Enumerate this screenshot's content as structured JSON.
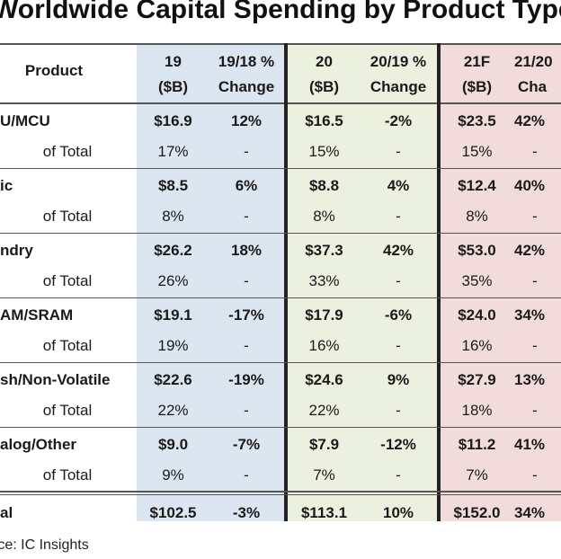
{
  "title": "Worldwide Capital Spending by Product Type",
  "source": "rce: IC Insights",
  "colors": {
    "blue_bg": "#dce6f1",
    "green_bg": "#ebf1de",
    "red_bg": "#f2dcdb"
  },
  "headers": {
    "product": "Product",
    "c19a": "19",
    "c19b": "($B)",
    "c1918a": "19/18 %",
    "c1918b": "Change",
    "c20a": "20",
    "c20b": "($B)",
    "c2019a": "20/19 %",
    "c2019b": "Change",
    "c21a": "21F",
    "c21b": "($B)",
    "c2120a": "21/20",
    "c2120b": "Cha"
  },
  "rows": [
    {
      "label": "U/MCU",
      "v19": "$16.9",
      "c19": "12%",
      "v20": "$16.5",
      "c20": "-2%",
      "v21": "$23.5",
      "c21": "42%",
      "sub_label": "of Total",
      "s19": "17%",
      "s20": "15%",
      "s21": "15%",
      "dash": "-"
    },
    {
      "label": "ic",
      "v19": "$8.5",
      "c19": "6%",
      "v20": "$8.8",
      "c20": "4%",
      "v21": "$12.4",
      "c21": "40%",
      "sub_label": "of Total",
      "s19": "8%",
      "s20": "8%",
      "s21": "8%",
      "dash": "-"
    },
    {
      "label": "ndry",
      "v19": "$26.2",
      "c19": "18%",
      "v20": "$37.3",
      "c20": "42%",
      "v21": "$53.0",
      "c21": "42%",
      "sub_label": "of Total",
      "s19": "26%",
      "s20": "33%",
      "s21": "35%",
      "dash": "-"
    },
    {
      "label": "AM/SRAM",
      "v19": "$19.1",
      "c19": "-17%",
      "v20": "$17.9",
      "c20": "-6%",
      "v21": "$24.0",
      "c21": "34%",
      "sub_label": "of Total",
      "s19": "19%",
      "s20": "16%",
      "s21": "16%",
      "dash": "-"
    },
    {
      "label": "sh/Non-Volatile",
      "v19": "$22.6",
      "c19": "-19%",
      "v20": "$24.6",
      "c20": "9%",
      "v21": "$27.9",
      "c21": "13%",
      "sub_label": "of Total",
      "s19": "22%",
      "s20": "22%",
      "s21": "18%",
      "dash": "-"
    },
    {
      "label": "alog/Other",
      "v19": "$9.0",
      "c19": "-7%",
      "v20": "$7.9",
      "c20": "-12%",
      "v21": "$11.2",
      "c21": "41%",
      "sub_label": "of Total",
      "s19": "9%",
      "s20": "7%",
      "s21": "7%",
      "dash": "-"
    }
  ],
  "total": {
    "label": "al",
    "v19": "$102.5",
    "c19": "-3%",
    "v20": "$113.1",
    "c20": "10%",
    "v21": "$152.0",
    "c21": "34%"
  },
  "chart_data": {
    "type": "table",
    "title": "Worldwide Capital Spending by Product Type",
    "columns": [
      "Product",
      "19 ($B)",
      "19/18 % Change",
      "20 ($B)",
      "20/19 % Change",
      "21F ($B)",
      "21/20 % Change"
    ],
    "rows": [
      [
        "U/MCU",
        "$16.9",
        "12%",
        "$16.5",
        "-2%",
        "$23.5",
        "42%"
      ],
      [
        "of Total",
        "17%",
        "-",
        "15%",
        "-",
        "15%",
        "-"
      ],
      [
        "ic",
        "$8.5",
        "6%",
        "$8.8",
        "4%",
        "$12.4",
        "40%"
      ],
      [
        "of Total",
        "8%",
        "-",
        "8%",
        "-",
        "8%",
        "-"
      ],
      [
        "ndry",
        "$26.2",
        "18%",
        "$37.3",
        "42%",
        "$53.0",
        "42%"
      ],
      [
        "of Total",
        "26%",
        "-",
        "33%",
        "-",
        "35%",
        "-"
      ],
      [
        "AM/SRAM",
        "$19.1",
        "-17%",
        "$17.9",
        "-6%",
        "$24.0",
        "34%"
      ],
      [
        "of Total",
        "19%",
        "-",
        "16%",
        "-",
        "16%",
        "-"
      ],
      [
        "sh/Non-Volatile",
        "$22.6",
        "-19%",
        "$24.6",
        "9%",
        "$27.9",
        "13%"
      ],
      [
        "of Total",
        "22%",
        "-",
        "22%",
        "-",
        "18%",
        "-"
      ],
      [
        "alog/Other",
        "$9.0",
        "-7%",
        "$7.9",
        "-12%",
        "$11.2",
        "41%"
      ],
      [
        "of Total",
        "9%",
        "-",
        "7%",
        "-",
        "7%",
        "-"
      ],
      [
        "al",
        "$102.5",
        "-3%",
        "$113.1",
        "10%",
        "$152.0",
        "34%"
      ]
    ]
  }
}
